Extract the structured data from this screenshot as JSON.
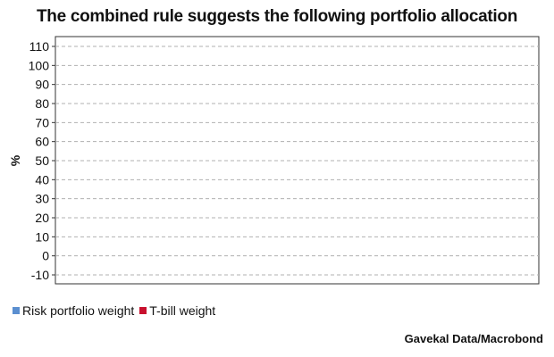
{
  "chart_data": {
    "type": "area",
    "title": "The combined rule suggests the following portfolio allocation",
    "ylabel": "%",
    "xlabel": "",
    "ylim": [
      -15,
      115
    ],
    "yticks": [
      110,
      100,
      90,
      80,
      70,
      60,
      50,
      40,
      30,
      20,
      10,
      0,
      -10
    ],
    "grid": true,
    "legend_position": "bottom-left",
    "series": [
      {
        "name": "Risk portfolio weight",
        "color": "#5b8fd0",
        "values": []
      },
      {
        "name": "T-bill weight",
        "color": "#c8102e",
        "values": []
      }
    ],
    "source": "Gavekal Data/Macrobond"
  }
}
